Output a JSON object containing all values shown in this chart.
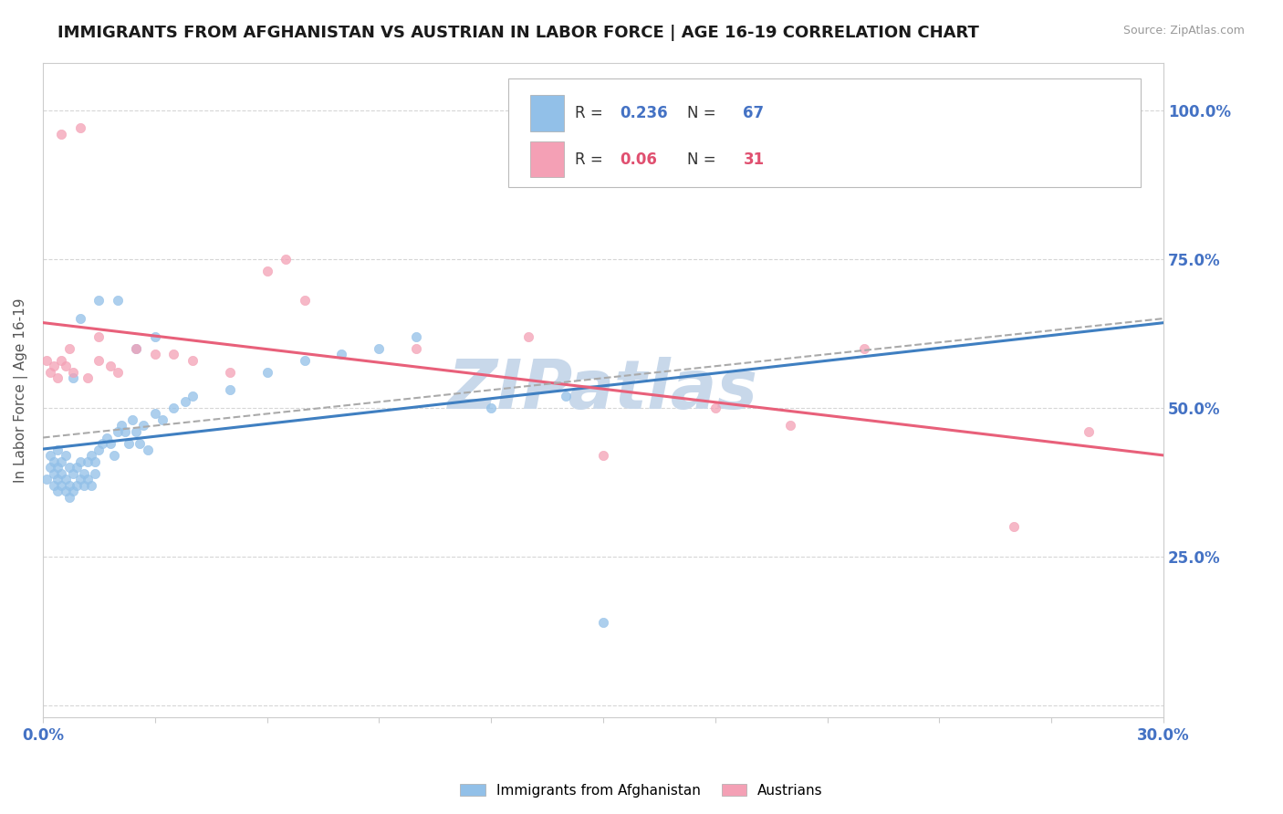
{
  "title": "IMMIGRANTS FROM AFGHANISTAN VS AUSTRIAN IN LABOR FORCE | AGE 16-19 CORRELATION CHART",
  "source": "Source: ZipAtlas.com",
  "ylabel": "In Labor Force | Age 16-19",
  "xlim": [
    0.0,
    0.3
  ],
  "ylim": [
    -0.02,
    1.08
  ],
  "R1": 0.236,
  "N1": 67,
  "R2": 0.06,
  "N2": 31,
  "color_blue": "#92C0E8",
  "color_pink": "#F4A0B5",
  "line_blue": "#3F7FC1",
  "line_pink": "#E8607A",
  "line_gray": "#AAAAAA",
  "color_blue_text": "#4472C4",
  "color_pink_text": "#E05070",
  "watermark": "ZIPatlas",
  "watermark_color": "#C8D8EA",
  "background_color": "#FFFFFF",
  "grid_color": "#CCCCCC",
  "blue_x": [
    0.001,
    0.002,
    0.002,
    0.003,
    0.003,
    0.003,
    0.004,
    0.004,
    0.004,
    0.004,
    0.005,
    0.005,
    0.005,
    0.006,
    0.006,
    0.006,
    0.007,
    0.007,
    0.007,
    0.008,
    0.008,
    0.009,
    0.009,
    0.01,
    0.01,
    0.011,
    0.011,
    0.012,
    0.012,
    0.013,
    0.013,
    0.014,
    0.014,
    0.015,
    0.016,
    0.017,
    0.018,
    0.019,
    0.02,
    0.021,
    0.022,
    0.023,
    0.024,
    0.025,
    0.026,
    0.027,
    0.028,
    0.03,
    0.032,
    0.035,
    0.038,
    0.04,
    0.05,
    0.06,
    0.07,
    0.08,
    0.09,
    0.1,
    0.12,
    0.14,
    0.02,
    0.025,
    0.03,
    0.015,
    0.01,
    0.008,
    0.15
  ],
  "blue_y": [
    0.38,
    0.4,
    0.42,
    0.37,
    0.39,
    0.41,
    0.36,
    0.38,
    0.4,
    0.43,
    0.37,
    0.39,
    0.41,
    0.36,
    0.38,
    0.42,
    0.35,
    0.37,
    0.4,
    0.36,
    0.39,
    0.37,
    0.4,
    0.38,
    0.41,
    0.37,
    0.39,
    0.38,
    0.41,
    0.37,
    0.42,
    0.39,
    0.41,
    0.43,
    0.44,
    0.45,
    0.44,
    0.42,
    0.46,
    0.47,
    0.46,
    0.44,
    0.48,
    0.46,
    0.44,
    0.47,
    0.43,
    0.49,
    0.48,
    0.5,
    0.51,
    0.52,
    0.53,
    0.56,
    0.58,
    0.59,
    0.6,
    0.62,
    0.5,
    0.52,
    0.68,
    0.6,
    0.62,
    0.68,
    0.65,
    0.55,
    0.14
  ],
  "pink_x": [
    0.001,
    0.002,
    0.003,
    0.004,
    0.005,
    0.005,
    0.006,
    0.007,
    0.008,
    0.01,
    0.012,
    0.015,
    0.018,
    0.02,
    0.025,
    0.03,
    0.035,
    0.04,
    0.05,
    0.06,
    0.065,
    0.07,
    0.1,
    0.13,
    0.15,
    0.18,
    0.2,
    0.22,
    0.26,
    0.28,
    0.015
  ],
  "pink_y": [
    0.58,
    0.56,
    0.57,
    0.55,
    0.58,
    0.96,
    0.57,
    0.6,
    0.56,
    0.97,
    0.55,
    0.58,
    0.57,
    0.56,
    0.6,
    0.59,
    0.59,
    0.58,
    0.56,
    0.73,
    0.75,
    0.68,
    0.6,
    0.62,
    0.42,
    0.5,
    0.47,
    0.6,
    0.3,
    0.46,
    0.62
  ]
}
